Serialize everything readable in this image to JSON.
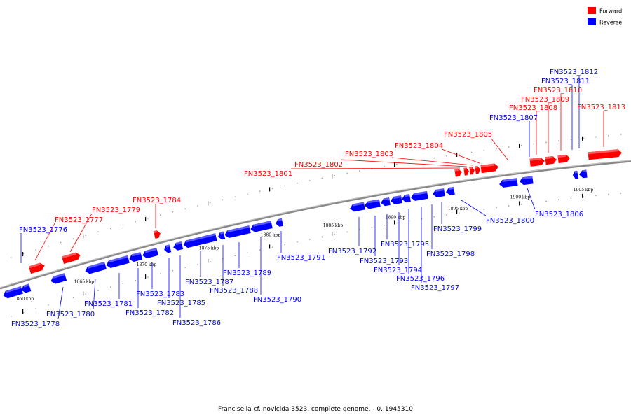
{
  "caption": "Francisella cf. novicida 3523, complete genome. - 0..1945310",
  "legend": {
    "forward": {
      "label": "Forward",
      "color": "#ff0000"
    },
    "reverse": {
      "label": "Reverse",
      "color": "#0000ff"
    }
  },
  "colors": {
    "forward": "#ff0000",
    "reverse": "#0000ff",
    "backbone": "#888888"
  },
  "kbp_ticks": [
    "1860 kbp",
    "1865 kbp",
    "1870 kbp",
    "1875 kbp",
    "1880 kbp",
    "1885 kbp",
    "1890 kbp",
    "1895 kbp",
    "1900 kbp",
    "1905 kbp"
  ],
  "genes": [
    {
      "name": "FN3523_1776",
      "strand": "reverse"
    },
    {
      "name": "FN3523_1777",
      "strand": "forward"
    },
    {
      "name": "FN3523_1778",
      "strand": "reverse"
    },
    {
      "name": "FN3523_1779",
      "strand": "forward"
    },
    {
      "name": "FN3523_1780",
      "strand": "reverse"
    },
    {
      "name": "FN3523_1781",
      "strand": "reverse"
    },
    {
      "name": "FN3523_1782",
      "strand": "reverse"
    },
    {
      "name": "FN3523_1783",
      "strand": "reverse"
    },
    {
      "name": "FN3523_1784",
      "strand": "forward"
    },
    {
      "name": "FN3523_1785",
      "strand": "reverse"
    },
    {
      "name": "FN3523_1786",
      "strand": "reverse"
    },
    {
      "name": "FN3523_1787",
      "strand": "reverse"
    },
    {
      "name": "FN3523_1788",
      "strand": "reverse"
    },
    {
      "name": "FN3523_1789",
      "strand": "reverse"
    },
    {
      "name": "FN3523_1790",
      "strand": "reverse"
    },
    {
      "name": "FN3523_1791",
      "strand": "reverse"
    },
    {
      "name": "FN3523_1792",
      "strand": "reverse"
    },
    {
      "name": "FN3523_1793",
      "strand": "reverse"
    },
    {
      "name": "FN3523_1794",
      "strand": "reverse"
    },
    {
      "name": "FN3523_1795",
      "strand": "reverse"
    },
    {
      "name": "FN3523_1796",
      "strand": "reverse"
    },
    {
      "name": "FN3523_1797",
      "strand": "reverse"
    },
    {
      "name": "FN3523_1798",
      "strand": "reverse"
    },
    {
      "name": "FN3523_1799",
      "strand": "reverse"
    },
    {
      "name": "FN3523_1800",
      "strand": "reverse"
    },
    {
      "name": "FN3523_1801",
      "strand": "forward"
    },
    {
      "name": "FN3523_1802",
      "strand": "forward"
    },
    {
      "name": "FN3523_1803",
      "strand": "forward"
    },
    {
      "name": "FN3523_1804",
      "strand": "forward"
    },
    {
      "name": "FN3523_1805",
      "strand": "forward"
    },
    {
      "name": "FN3523_1806",
      "strand": "reverse"
    },
    {
      "name": "FN3523_1807",
      "strand": "reverse"
    },
    {
      "name": "FN3523_1808",
      "strand": "forward"
    },
    {
      "name": "FN3523_1809",
      "strand": "forward"
    },
    {
      "name": "FN3523_1810",
      "strand": "forward"
    },
    {
      "name": "FN3523_1811",
      "strand": "reverse"
    },
    {
      "name": "FN3523_1812",
      "strand": "reverse"
    },
    {
      "name": "FN3523_1813",
      "strand": "forward"
    }
  ]
}
